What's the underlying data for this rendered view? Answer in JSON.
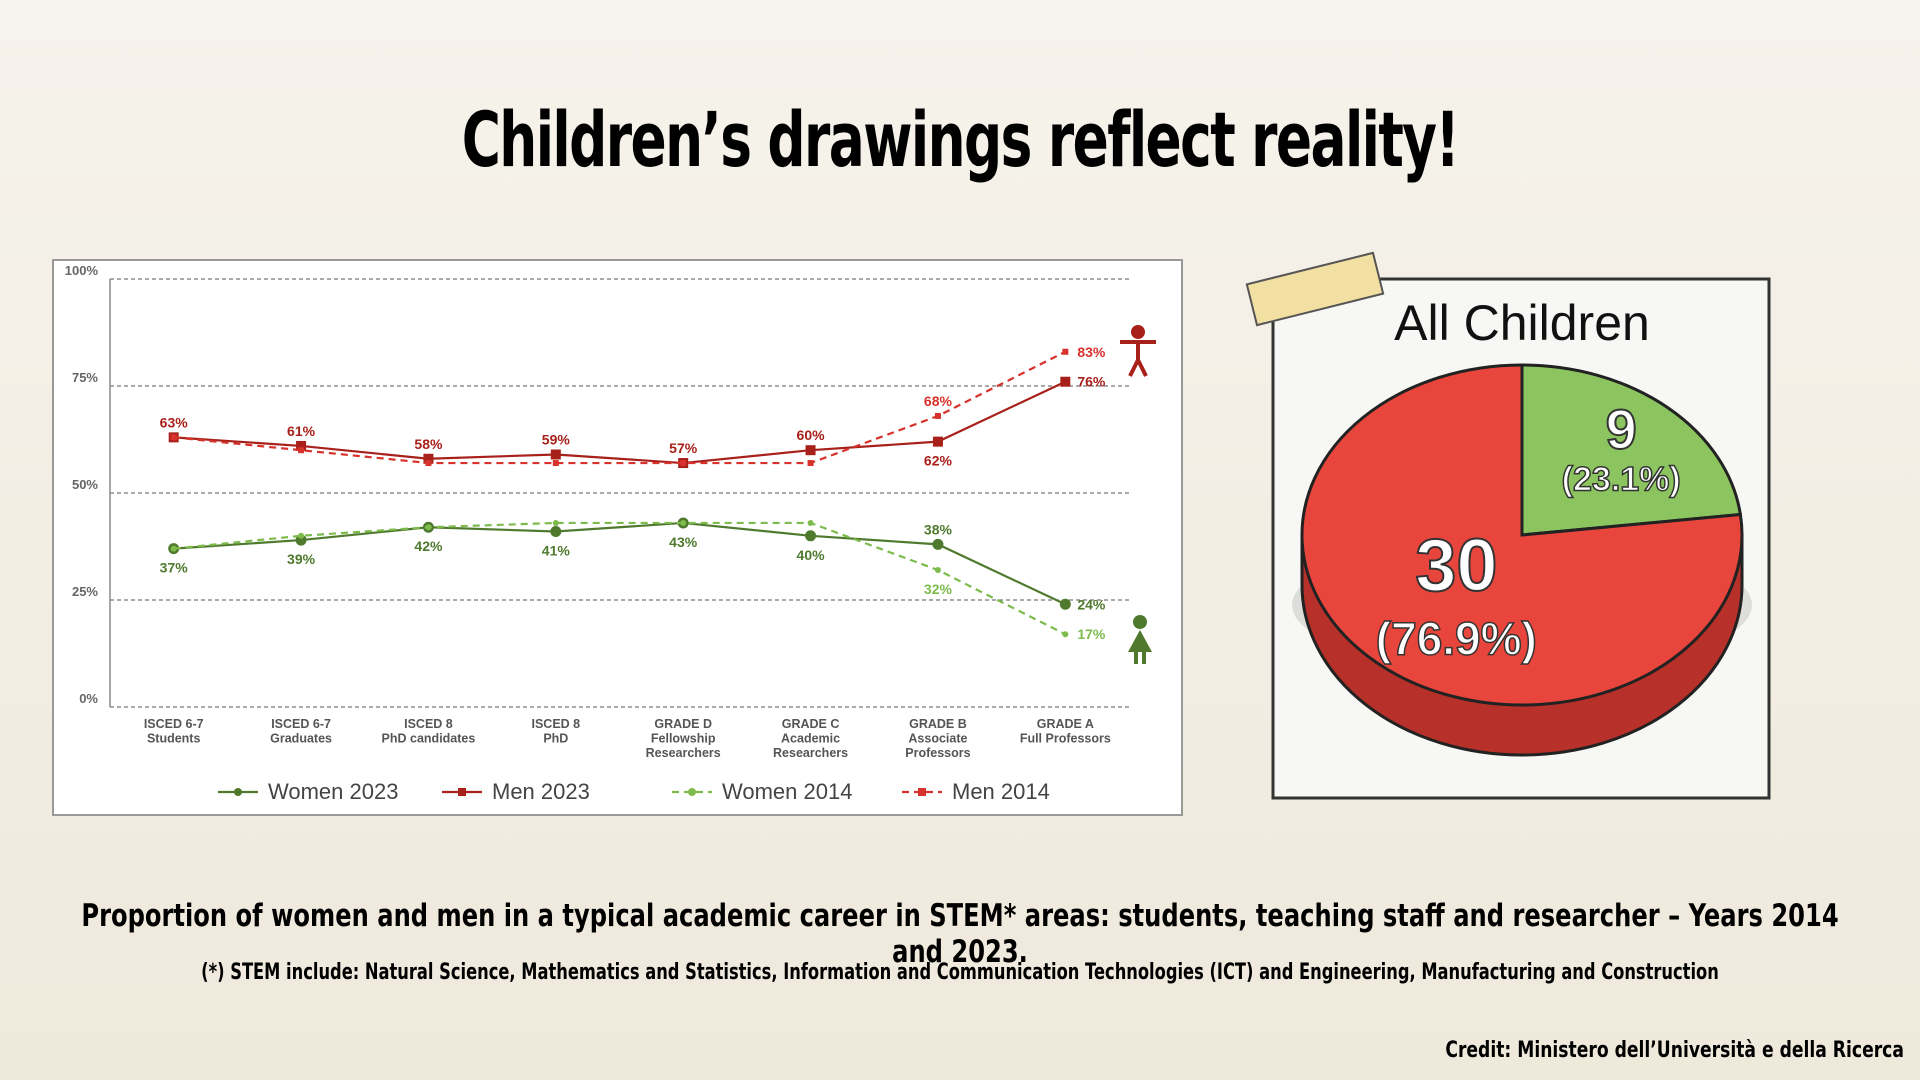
{
  "title": "Children’s drawings reflect reality!",
  "caption": "Proportion of women and men in a typical academic career in STEM* areas: students, teaching staff and researcher – Years 2014 and 2023.",
  "note": "(*) STEM include: Natural Science, Mathematics and Statistics, Information and Communication Technologies (ICT) and Engineering, Manufacturing and Construction",
  "credit": "Credit: Ministero dell’Università e della Ricerca",
  "chart_data": [
    {
      "type": "line",
      "categories": [
        "ISCED 6-7\nStudents",
        "ISCED 6-7\nGraduates",
        "ISCED 8\nPhD candidates",
        "ISCED 8\nPhD",
        "GRADE D\nFellowship\nResearchers",
        "GRADE C\nAcademic\nResearchers",
        "GRADE B\nAssociate\nProfessors",
        "GRADE A\nFull Professors"
      ],
      "ylim": [
        0,
        100
      ],
      "yticks": [
        {
          "value": 0,
          "label": "0%"
        },
        {
          "value": 25,
          "label": "25%"
        },
        {
          "value": 50,
          "label": "50%"
        },
        {
          "value": 75,
          "label": "75%"
        },
        {
          "value": 100,
          "label": "100%"
        }
      ],
      "grid": true,
      "legend": "bottom",
      "series": [
        {
          "name": "Women 2023",
          "color": "#4f7a2e",
          "style": "solid",
          "values": [
            37,
            39,
            42,
            41,
            43,
            40,
            38,
            24
          ],
          "value_labels": [
            "37%",
            "39%",
            "42%",
            "41%",
            "43%",
            "40%",
            "38%",
            "24%"
          ]
        },
        {
          "name": "Men 2023",
          "color": "#a8201a",
          "style": "solid",
          "values": [
            63,
            61,
            58,
            59,
            57,
            60,
            62,
            76
          ],
          "value_labels": [
            "63%",
            "61%",
            "58%",
            "59%",
            "57%",
            "60%",
            "62%",
            "76%"
          ]
        },
        {
          "name": "Women 2014",
          "color": "#7dbb4c",
          "style": "dashed",
          "values": [
            37,
            40,
            42,
            43,
            43,
            43,
            32,
            17
          ],
          "value_labels": [
            null,
            null,
            null,
            null,
            null,
            null,
            "32%",
            "17%"
          ]
        },
        {
          "name": "Men 2014",
          "color": "#d7322c",
          "style": "dashed",
          "values": [
            63,
            60,
            57,
            57,
            57,
            57,
            68,
            83
          ],
          "value_labels": [
            null,
            null,
            null,
            null,
            null,
            null,
            "68%",
            "83%"
          ]
        }
      ]
    },
    {
      "type": "pie",
      "title": "All Children",
      "values": [
        9,
        30
      ],
      "percent_labels": [
        "(23.1%)",
        "(76.9%)"
      ],
      "colors": [
        "#8cc560",
        "#e8463c"
      ]
    }
  ]
}
